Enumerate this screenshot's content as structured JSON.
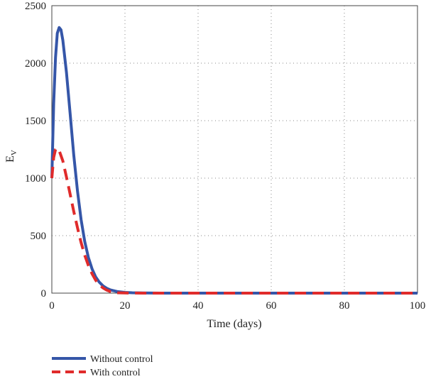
{
  "chart_data": {
    "type": "line",
    "xlabel": "Time (days)",
    "ylabel_main": "E",
    "ylabel_sub": "V",
    "xlim": [
      0,
      100
    ],
    "ylim": [
      0,
      2500
    ],
    "xticks": [
      "0",
      "20",
      "40",
      "60",
      "80",
      "100"
    ],
    "yticks": [
      "0",
      "500",
      "1000",
      "1500",
      "2000",
      "2500"
    ],
    "grid": true,
    "legend_position": "bottom-left",
    "series": [
      {
        "name": "Without control",
        "color": "#3556a8",
        "style": "solid",
        "x": [
          0,
          0.5,
          1,
          1.5,
          2,
          2.5,
          3,
          4,
          5,
          6,
          7,
          8,
          9,
          10,
          11,
          12,
          13,
          14,
          15,
          16,
          18,
          20,
          22,
          25,
          30,
          35,
          40,
          50,
          60,
          70,
          80,
          90,
          100
        ],
        "y": [
          1000,
          1650,
          2050,
          2260,
          2310,
          2290,
          2200,
          1920,
          1560,
          1200,
          890,
          640,
          450,
          310,
          210,
          140,
          95,
          63,
          42,
          28,
          13,
          6,
          3,
          1,
          0,
          0,
          0,
          0,
          0,
          0,
          0,
          0,
          0
        ]
      },
      {
        "name": "With control",
        "color": "#e02b2b",
        "style": "dashed",
        "x": [
          0,
          0.5,
          1,
          1.5,
          2,
          3,
          4,
          5,
          6,
          7,
          8,
          9,
          10,
          11,
          12,
          13,
          14,
          15,
          16,
          17,
          18,
          20,
          25,
          30,
          40,
          50,
          60,
          70,
          80,
          90,
          100
        ],
        "y": [
          1000,
          1180,
          1250,
          1260,
          1240,
          1150,
          1010,
          860,
          710,
          570,
          440,
          330,
          240,
          168,
          112,
          72,
          45,
          26,
          14,
          7,
          3,
          1,
          0,
          0,
          0,
          0,
          0,
          0,
          0,
          0,
          0
        ]
      }
    ]
  }
}
